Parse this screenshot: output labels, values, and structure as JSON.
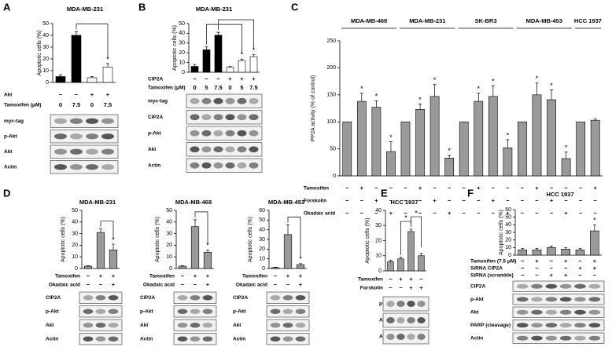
{
  "panel_letters": [
    "A",
    "B",
    "C",
    "D",
    "E",
    "F"
  ],
  "chart_data": [
    {
      "type": "bar",
      "title": "MDA-MB-231",
      "y_label": "Apoptotic cells (%)",
      "values": [
        5,
        40,
        4,
        13
      ],
      "errors": [
        1.5,
        3,
        1,
        3
      ],
      "colors": [
        "#000000",
        "#000000",
        "#ffffff",
        "#ffffff"
      ],
      "significance": [
        null,
        null,
        null,
        "*"
      ],
      "ylim": [
        0,
        50
      ],
      "yticks": [
        0,
        10,
        20,
        30,
        40,
        50
      ],
      "brackets": [
        [
          1,
          3
        ]
      ],
      "conditions": [
        {
          "label": "Akt",
          "marks": [
            "−",
            "−",
            "+",
            "+"
          ]
        },
        {
          "label": "Tamoxifen (μM)",
          "marks": [
            "0",
            "7.5",
            "0",
            "7.5"
          ]
        }
      ],
      "blots": [
        "myc-tag",
        "p-Akt",
        "Akt",
        "Actin"
      ]
    },
    {
      "type": "bar",
      "title": "MDA-MB-231",
      "y_label": "Apoptotic cells (%)",
      "values": [
        6,
        23,
        38,
        5,
        12,
        16
      ],
      "errors": [
        2,
        3,
        3,
        1,
        1.5,
        2
      ],
      "colors": [
        "#000000",
        "#000000",
        "#000000",
        "#ffffff",
        "#ffffff",
        "#ffffff"
      ],
      "significance": [
        null,
        null,
        null,
        null,
        "*",
        "*"
      ],
      "ylim": [
        0,
        50
      ],
      "yticks": [
        0,
        10,
        20,
        30,
        40,
        50
      ],
      "brackets": [
        [
          1,
          4
        ],
        [
          2,
          5
        ]
      ],
      "conditions": [
        {
          "label": "CIP2A",
          "marks": [
            "−",
            "−",
            "−",
            "+",
            "+",
            "+"
          ]
        },
        {
          "label": "Tamoxifen (μM)",
          "marks": [
            "0",
            "5",
            "7.5",
            "0",
            "5",
            "7.5"
          ]
        }
      ],
      "blots": [
        "myc-tag",
        "CIP2A",
        "p-Akt",
        "Akt",
        "Actin"
      ]
    },
    {
      "type": "grouped_bar",
      "y_label": "PP2A activity (% of control)",
      "color": "#9a9a9a",
      "groups": [
        {
          "name": "MDA-MB-468",
          "values": [
            100,
            138,
            127,
            45
          ],
          "errors": [
            null,
            15,
            12,
            18
          ],
          "significance": [
            null,
            "*",
            "*",
            "*"
          ]
        },
        {
          "name": "MDA-MB-231",
          "values": [
            100,
            123,
            147,
            33
          ],
          "errors": [
            null,
            10,
            22,
            5
          ],
          "significance": [
            null,
            "*",
            "*",
            "*"
          ]
        },
        {
          "name": "SK-BR3",
          "values": [
            100,
            138,
            147,
            52
          ],
          "errors": [
            null,
            15,
            20,
            15
          ],
          "significance": [
            null,
            "*",
            "*",
            "*"
          ]
        },
        {
          "name": "MDA-MB-453",
          "values": [
            100,
            150,
            141,
            32
          ],
          "errors": [
            null,
            22,
            18,
            12
          ],
          "significance": [
            null,
            "*",
            "*",
            "*"
          ]
        },
        {
          "name": "HCC 1937",
          "values": [
            100,
            103
          ],
          "errors": [
            null,
            3
          ],
          "significance": [
            null,
            null
          ]
        }
      ],
      "ylim": [
        0,
        250
      ],
      "yticks": [
        0,
        50,
        100,
        150,
        200,
        250
      ],
      "conditions": [
        {
          "label": "Tamoxifen",
          "marks": [
            "−",
            "+",
            "−",
            "−",
            "−",
            "+",
            "−",
            "−",
            "−",
            "+",
            "−",
            "−",
            "−",
            "+",
            "−",
            "−",
            "−",
            "+"
          ]
        },
        {
          "label": "Forskolin",
          "marks": [
            "−",
            "−",
            "+",
            "−",
            "−",
            "−",
            "+",
            "−",
            "−",
            "−",
            "+",
            "−",
            "−",
            "−",
            "+",
            "−",
            "−",
            "−"
          ]
        },
        {
          "label": "Okadaic acid",
          "marks": [
            "−",
            "−",
            "−",
            "+",
            "−",
            "−",
            "−",
            "+",
            "−",
            "−",
            "−",
            "+",
            "−",
            "−",
            "−",
            "+",
            "−",
            "−"
          ]
        }
      ]
    },
    {
      "type": "bar",
      "title": "MDA-MB-231",
      "y_label": "Apoptotic cells (%)",
      "color": "#9a9a9a",
      "values": [
        2,
        31,
        16
      ],
      "errors": [
        0.5,
        3,
        5
      ],
      "significance": [
        null,
        null,
        "*"
      ],
      "ylim": [
        0,
        50
      ],
      "yticks": [
        0,
        10,
        20,
        30,
        40,
        50
      ],
      "brackets": [
        [
          1,
          2
        ]
      ],
      "conditions": [
        {
          "label": "Tamoxifen",
          "marks": [
            "−",
            "+",
            "+"
          ]
        },
        {
          "label": "Okadaic acid",
          "marks": [
            "−",
            "−",
            "+"
          ]
        }
      ],
      "blots": [
        "CIP2A",
        "p-Akt",
        "Akt",
        "Actin"
      ]
    },
    {
      "type": "bar",
      "title": "MDA-MB-468",
      "y_label": "Apoptotic cells (%)",
      "color": "#9a9a9a",
      "values": [
        2,
        36,
        14
      ],
      "errors": [
        0.5,
        6,
        2
      ],
      "significance": [
        null,
        null,
        "*"
      ],
      "ylim": [
        0,
        50
      ],
      "yticks": [
        0,
        10,
        20,
        30,
        40,
        50
      ],
      "brackets": [
        [
          1,
          2
        ]
      ],
      "conditions": [
        {
          "label": "Tamoxifen",
          "marks": [
            "−",
            "+",
            "+"
          ]
        },
        {
          "label": "Okadaic acid",
          "marks": [
            "−",
            "−",
            "+"
          ]
        }
      ],
      "blots": [
        "CIP2A",
        "p-Akt",
        "Akt",
        "Actin"
      ]
    },
    {
      "type": "bar",
      "title": "MDA-MB-453",
      "y_label": "Apoptotic cells (%)",
      "color": "#9a9a9a",
      "values": [
        1,
        35,
        4
      ],
      "errors": [
        0.3,
        10,
        1
      ],
      "significance": [
        null,
        null,
        "*"
      ],
      "ylim": [
        0,
        60
      ],
      "yticks": [
        0,
        10,
        20,
        30,
        40,
        50,
        60
      ],
      "brackets": [
        [
          1,
          2
        ]
      ],
      "conditions": [
        {
          "label": "Tamoxifen",
          "marks": [
            "−",
            "+",
            "+"
          ]
        },
        {
          "label": "Okadaic acid",
          "marks": [
            "−",
            "−",
            "+"
          ]
        }
      ],
      "blots": [
        "CIP2A",
        "p-Akt",
        "Akt",
        "Actin"
      ]
    },
    {
      "type": "bar",
      "title": "HCC 1937",
      "y_label": "Apoptotic cells (%)",
      "color": "#9a9a9a",
      "values": [
        6,
        8,
        26,
        10
      ],
      "errors": [
        1,
        1,
        1.5,
        1.5
      ],
      "ylim": [
        0,
        40
      ],
      "yticks": [
        0,
        10,
        20,
        30,
        40
      ],
      "brackets": [
        [
          1,
          2
        ],
        [
          2,
          3
        ]
      ],
      "bracket_labels": [
        "*",
        "*"
      ],
      "conditions": [
        {
          "label": "Tamoxifen",
          "marks": [
            "−",
            "+",
            "+",
            "−"
          ]
        },
        {
          "label": "Forskolin",
          "marks": [
            "−",
            "−",
            "+",
            "+"
          ]
        }
      ],
      "blots": [
        "p-Akt",
        "Akt",
        "Actin"
      ]
    },
    {
      "type": "bar",
      "title": "HCC 1937",
      "y_label": "Apoptotic cells (%)",
      "color": "#9a9a9a",
      "values": [
        7,
        7,
        10,
        8,
        7,
        32
      ],
      "errors": [
        2,
        2,
        2,
        2,
        2,
        8
      ],
      "significance": [
        null,
        null,
        null,
        null,
        null,
        "*"
      ],
      "ylim": [
        0,
        60
      ],
      "yticks": [
        0,
        10,
        20,
        30,
        40,
        50,
        60
      ],
      "conditions": [
        {
          "label": "Tamoxifen (7.5 μM)",
          "marks": [
            "−",
            "+",
            "−",
            "+",
            "−",
            "+"
          ]
        },
        {
          "label": "SiRNA CIP2A",
          "marks": [
            "−",
            "−",
            "−",
            "−",
            "+",
            "+"
          ]
        },
        {
          "label": "SiRNA (scramble)",
          "marks": [
            "−",
            "−",
            "+",
            "+",
            "−",
            "−"
          ]
        }
      ],
      "blots": [
        "CIP2A",
        "p-Akt",
        "Akt",
        "PARP (cleavage)",
        "Actin"
      ]
    }
  ]
}
